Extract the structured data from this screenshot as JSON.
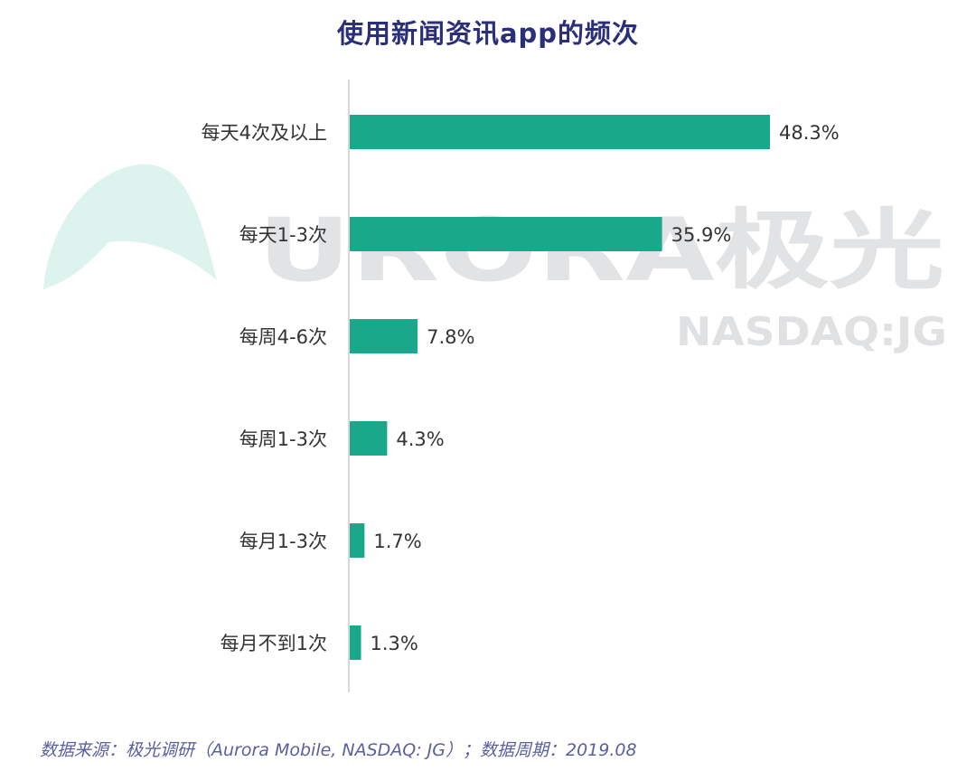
{
  "colors": {
    "bar": "#1aa88a",
    "title": "#2b2f7a",
    "axis": "#cccccc",
    "source": "#5a5fa0",
    "watermark_text": "#d9dadd",
    "watermark_shape": "#cfeee6"
  },
  "watermark": {
    "logo": "URORA极光",
    "sub": "NASDAQ:JG",
    "icon": "aurora-logo-icon"
  },
  "chart_data": {
    "type": "bar",
    "orientation": "horizontal",
    "title": "使用新闻资讯app的频次",
    "categories": [
      "每天4次及以上",
      "每天1-3次",
      "每周4-6次",
      "每周1-3次",
      "每月1-3次",
      "每月不到1次"
    ],
    "values": [
      48.3,
      35.9,
      7.8,
      4.3,
      1.7,
      1.3
    ],
    "value_labels": [
      "48.3%",
      "35.9%",
      "7.8%",
      "4.3%",
      "1.7%",
      "1.3%"
    ],
    "xlim": [
      0,
      50
    ],
    "grid": false,
    "legend": "none"
  },
  "source": "数据来源：极光调研（Aurora Mobile, NASDAQ: JG）；数据周期：2019.08"
}
